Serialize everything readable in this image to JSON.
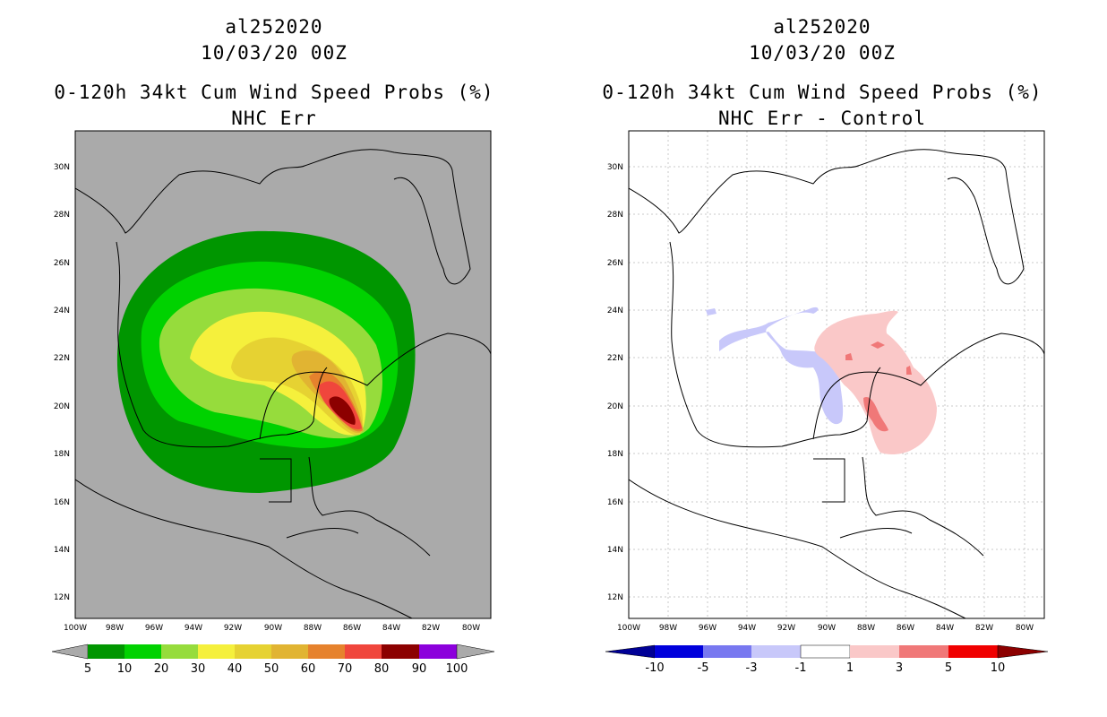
{
  "left_panel": {
    "storm_id": "al252020",
    "datetime": "10/03/20 00Z",
    "product": "0-120h 34kt Cum Wind Speed Probs (%)",
    "subtitle": "NHC Err",
    "colorbar": {
      "labels": [
        "5",
        "10",
        "20",
        "30",
        "40",
        "50",
        "60",
        "70",
        "80",
        "90",
        "100"
      ],
      "colors": [
        "#009600",
        "#00d200",
        "#96dc3c",
        "#f5f03c",
        "#e6d232",
        "#e1b432",
        "#e6822d",
        "#f0463c",
        "#8c0000",
        "#8c00dc"
      ]
    }
  },
  "right_panel": {
    "storm_id": "al252020",
    "datetime": "10/03/20 00Z",
    "product": "0-120h 34kt Cum Wind Speed Probs (%)",
    "subtitle": "NHC Err - Control",
    "colorbar": {
      "labels": [
        "-10",
        "-5",
        "-3",
        "-1",
        "1",
        "3",
        "5",
        "10"
      ],
      "colors": [
        "#000096",
        "#0000dc",
        "#7878f0",
        "#c8c8fa",
        "#ffffff",
        "#fac8c8",
        "#f07878",
        "#f00000",
        "#8c0000"
      ]
    }
  },
  "axes": {
    "lat_labels": [
      "30N",
      "28N",
      "26N",
      "24N",
      "22N",
      "20N",
      "18N",
      "16N",
      "14N",
      "12N"
    ],
    "lon_labels": [
      "100W",
      "98W",
      "96W",
      "94W",
      "92W",
      "90W",
      "88W",
      "86W",
      "84W",
      "82W",
      "80W"
    ]
  },
  "colors": {
    "land_bg": "#aaaaaa",
    "grid": "#c8c8c8",
    "coast": "#000000"
  }
}
